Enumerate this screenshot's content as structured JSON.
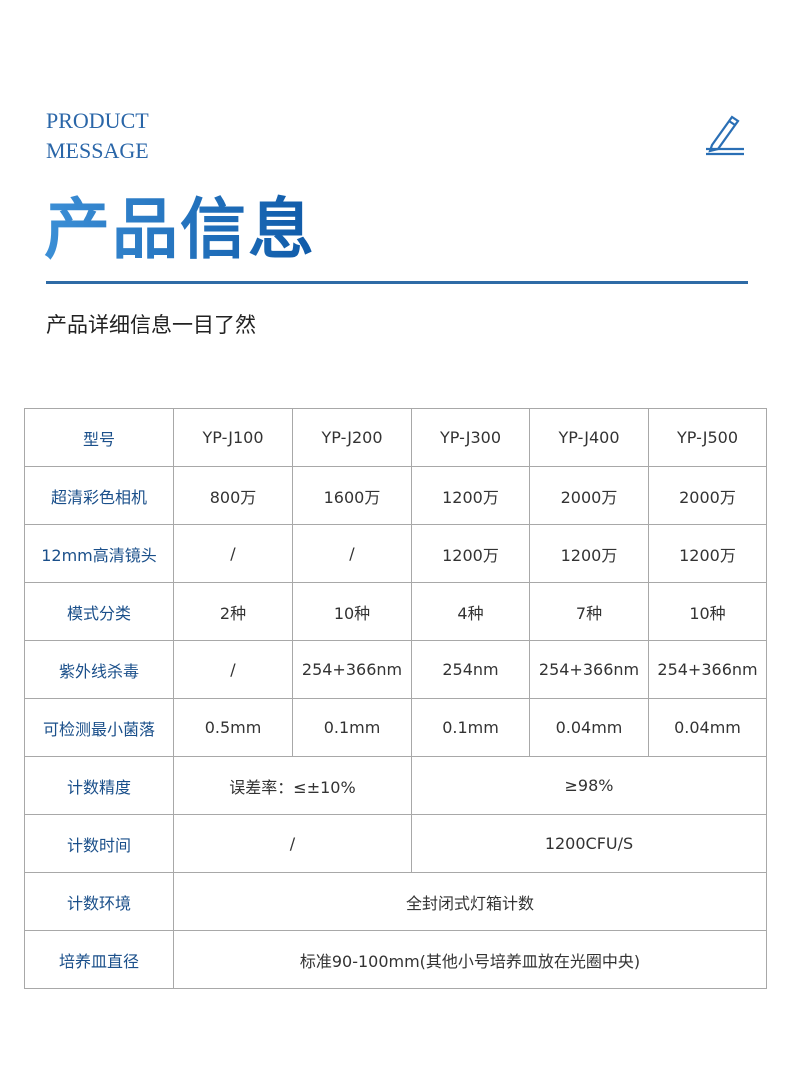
{
  "header": {
    "en_line1": "PRODUCT",
    "en_line2": "MESSAGE",
    "title": "产品信息",
    "subtitle": "产品详细信息一目了然",
    "icon": "pencil-icon",
    "accent": "#1f6ab3"
  },
  "table": {
    "models": {
      "label": "型号",
      "values": [
        "YP-J100",
        "YP-J200",
        "YP-J300",
        "YP-J400",
        "YP-J500"
      ]
    },
    "camera": {
      "label": "超清彩色相机",
      "values": [
        "800万",
        "1600万",
        "1200万",
        "2000万",
        "2000万"
      ]
    },
    "lens": {
      "label": "12mm高清镜头",
      "values": [
        "/",
        "/",
        "1200万",
        "1200万",
        "1200万"
      ]
    },
    "modes": {
      "label": "模式分类",
      "values": [
        "2种",
        "10种",
        "4种",
        "7种",
        "10种"
      ]
    },
    "uv": {
      "label": "紫外线杀毒",
      "values": [
        "/",
        "254+366nm",
        "254nm",
        "254+366nm",
        "254+366nm"
      ]
    },
    "min_colony": {
      "label": "可检测最小菌落",
      "values": [
        "0.5mm",
        "0.1mm",
        "0.1mm",
        "0.04mm",
        "0.04mm"
      ]
    },
    "accuracy": {
      "label": "计数精度",
      "values": [
        "误差率：≤±10%",
        "≥98%"
      ]
    },
    "time": {
      "label": "计数时间",
      "values": [
        "/",
        "1200CFU/S"
      ]
    },
    "environment": {
      "label": "计数环境",
      "value": "全封闭式灯箱计数"
    },
    "dish": {
      "label": "培养皿直径",
      "value": "标准90-100mm(其他小号培养皿放在光圈中央)"
    }
  }
}
